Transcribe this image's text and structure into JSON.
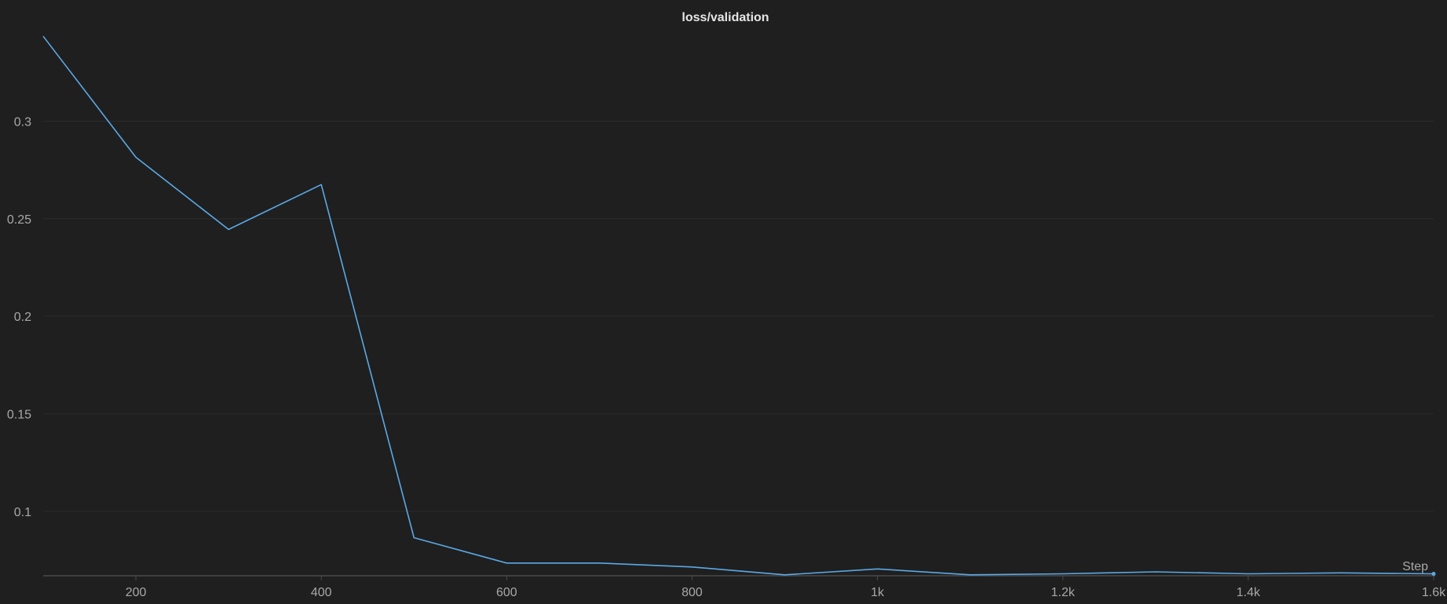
{
  "chart_data": {
    "type": "line",
    "title": "loss/validation",
    "xlabel": "Step",
    "ylabel": "",
    "xlim": [
      100,
      1600
    ],
    "ylim": [
      0.067,
      0.344
    ],
    "grid": true,
    "x_ticks": [
      {
        "value": 200,
        "label": "200"
      },
      {
        "value": 400,
        "label": "400"
      },
      {
        "value": 600,
        "label": "600"
      },
      {
        "value": 800,
        "label": "800"
      },
      {
        "value": 1000,
        "label": "1k"
      },
      {
        "value": 1200,
        "label": "1.2k"
      },
      {
        "value": 1400,
        "label": "1.4k"
      },
      {
        "value": 1600,
        "label": "1.6k"
      }
    ],
    "y_ticks": [
      {
        "value": 0.1,
        "label": "0.1"
      },
      {
        "value": 0.15,
        "label": "0.15"
      },
      {
        "value": 0.2,
        "label": "0.2"
      },
      {
        "value": 0.25,
        "label": "0.25"
      },
      {
        "value": 0.3,
        "label": "0.3"
      }
    ],
    "series": [
      {
        "color": "#5aa9e6",
        "x": [
          100,
          200,
          300,
          400,
          500,
          600,
          700,
          800,
          900,
          1000,
          1100,
          1200,
          1300,
          1400,
          1500,
          1600
        ],
        "y": [
          0.3435,
          0.2815,
          0.2445,
          0.2675,
          0.0865,
          0.0735,
          0.0735,
          0.0715,
          0.0675,
          0.0705,
          0.0675,
          0.068,
          0.069,
          0.068,
          0.0685,
          0.068
        ]
      }
    ]
  }
}
